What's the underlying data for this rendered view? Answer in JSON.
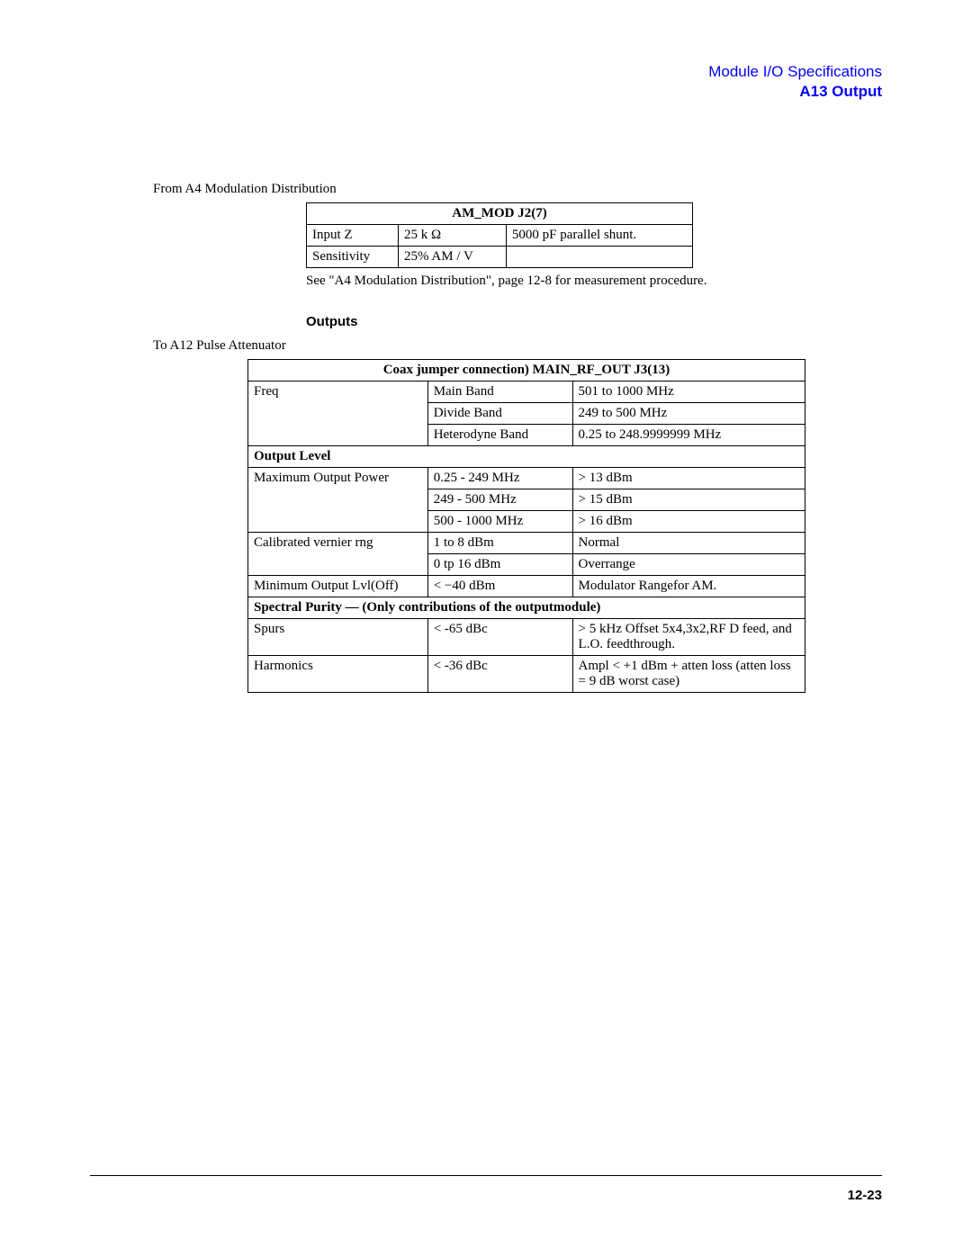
{
  "header": {
    "line1": "Module I/O Specifications",
    "line2": "A13 Output"
  },
  "section1": {
    "intro": "From A4 Modulation Distribution",
    "table_title": "AM_MOD J2(7)",
    "rows": [
      {
        "c1": "Input Z",
        "c2": "25 k Ω",
        "c3": "5000 pF parallel shunt."
      },
      {
        "c1": "Sensitivity",
        "c2": "25% AM / V",
        "c3": ""
      }
    ],
    "note": "See \"A4 Modulation Distribution\", page 12-8 for measurement procedure."
  },
  "outputs_heading": "Outputs",
  "section2": {
    "intro": "To A12 Pulse Attenuator",
    "table_title": "Coax jumper connection) MAIN_RF_OUT J3(13)",
    "freq_label": "Freq",
    "freq_rows": [
      {
        "c2": "Main Band",
        "c3": "501 to 1000 MHz"
      },
      {
        "c2": "Divide Band",
        "c3": "249 to 500  MHz"
      },
      {
        "c2": "Heterodyne Band",
        "c3": "0.25 to 248.9999999 MHz"
      }
    ],
    "output_level_heading": "Output Level",
    "maxpow_label": "Maximum Output Power",
    "maxpow_rows": [
      {
        "c2": "0.25 - 249 MHz",
        "c3": "> 13 dBm"
      },
      {
        "c2": "249 - 500 MHz",
        "c3": "> 15 dBm"
      },
      {
        "c2": "500 - 1000 MHz",
        "c3": "> 16 dBm"
      }
    ],
    "vernier_label": "Calibrated vernier rng",
    "vernier_rows": [
      {
        "c2": "1 to 8 dBm",
        "c3": "Normal"
      },
      {
        "c2": "0 tp 16 dBm",
        "c3": "Overrange"
      }
    ],
    "minout": {
      "c1": "Minimum Output Lvl(Off)",
      "c2": "< −40 dBm",
      "c3": "Modulator Rangefor AM."
    },
    "spectral_heading": "Spectral Purity — (Only contributions of the outputmodule)",
    "spurs": {
      "c1": "Spurs",
      "c2": "< -65 dBc",
      "c3": "> 5 kHz Offset  5x4,3x2,RF D feed, and L.O. feedthrough."
    },
    "harm": {
      "c1": "Harmonics",
      "c2": "< -36 dBc",
      "c3": "Ampl < +1 dBm + atten loss (atten loss = 9 dB worst case)"
    }
  },
  "pagenum": "12-23"
}
